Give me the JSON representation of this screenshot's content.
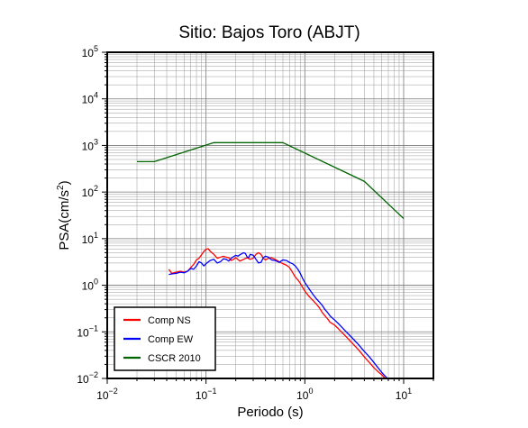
{
  "chart_data": {
    "type": "line",
    "title": "Sitio: Bajos Toro (ABJT)",
    "xlabel": "Periodo (s)",
    "ylabel": {
      "prefix": "PSA(cm/s",
      "exp": "2",
      "suffix": ")"
    },
    "xscale": "log",
    "yscale": "log",
    "xlim": [
      0.01,
      20
    ],
    "ylim": [
      0.01,
      100000
    ],
    "x_ticks": [
      {
        "base": "10",
        "exp": "−2",
        "value": 0.01
      },
      {
        "base": "10",
        "exp": "−1",
        "value": 0.1
      },
      {
        "base": "10",
        "exp": "0",
        "value": 1
      },
      {
        "base": "10",
        "exp": "1",
        "value": 10
      }
    ],
    "y_ticks": [
      {
        "base": "10",
        "exp": "−2",
        "value": 0.01
      },
      {
        "base": "10",
        "exp": "−1",
        "value": 0.1
      },
      {
        "base": "10",
        "exp": "0",
        "value": 1
      },
      {
        "base": "10",
        "exp": "1",
        "value": 10
      },
      {
        "base": "10",
        "exp": "2",
        "value": 100
      },
      {
        "base": "10",
        "exp": "3",
        "value": 1000
      },
      {
        "base": "10",
        "exp": "4",
        "value": 10000
      },
      {
        "base": "10",
        "exp": "5",
        "value": 100000
      }
    ],
    "grid": true,
    "legend_position": "bottom-left",
    "series": [
      {
        "name": "Comp NS",
        "color": "#ff0000",
        "points": [
          [
            0.042,
            2.2
          ],
          [
            0.045,
            1.8
          ],
          [
            0.05,
            1.9
          ],
          [
            0.055,
            2.0
          ],
          [
            0.06,
            1.9
          ],
          [
            0.065,
            2.0
          ],
          [
            0.07,
            2.4
          ],
          [
            0.075,
            2.8
          ],
          [
            0.08,
            3.5
          ],
          [
            0.085,
            3.8
          ],
          [
            0.09,
            4.5
          ],
          [
            0.095,
            5.3
          ],
          [
            0.1,
            5.9
          ],
          [
            0.105,
            6.1
          ],
          [
            0.11,
            5.4
          ],
          [
            0.12,
            4.6
          ],
          [
            0.13,
            3.8
          ],
          [
            0.14,
            4.0
          ],
          [
            0.15,
            4.2
          ],
          [
            0.16,
            4.0
          ],
          [
            0.17,
            3.9
          ],
          [
            0.18,
            3.4
          ],
          [
            0.19,
            3.6
          ],
          [
            0.2,
            3.9
          ],
          [
            0.22,
            3.3
          ],
          [
            0.24,
            3.6
          ],
          [
            0.26,
            3.9
          ],
          [
            0.28,
            3.6
          ],
          [
            0.3,
            3.8
          ],
          [
            0.32,
            4.6
          ],
          [
            0.34,
            5.0
          ],
          [
            0.36,
            4.6
          ],
          [
            0.38,
            3.8
          ],
          [
            0.4,
            3.5
          ],
          [
            0.43,
            3.8
          ],
          [
            0.46,
            3.9
          ],
          [
            0.5,
            3.6
          ],
          [
            0.55,
            3.2
          ],
          [
            0.6,
            2.9
          ],
          [
            0.65,
            2.7
          ],
          [
            0.7,
            2.4
          ],
          [
            0.75,
            1.9
          ],
          [
            0.8,
            1.5
          ],
          [
            0.85,
            1.3
          ],
          [
            0.9,
            1.1
          ],
          [
            0.95,
            0.9
          ],
          [
            1.0,
            0.75
          ],
          [
            1.1,
            0.58
          ],
          [
            1.2,
            0.48
          ],
          [
            1.3,
            0.4
          ],
          [
            1.4,
            0.33
          ],
          [
            1.5,
            0.26
          ],
          [
            1.6,
            0.22
          ],
          [
            1.7,
            0.19
          ],
          [
            1.8,
            0.16
          ],
          [
            2.0,
            0.14
          ],
          [
            2.2,
            0.115
          ],
          [
            2.4,
            0.095
          ],
          [
            2.6,
            0.08
          ],
          [
            3.0,
            0.058
          ],
          [
            3.5,
            0.041
          ],
          [
            4.0,
            0.029
          ],
          [
            4.5,
            0.022
          ],
          [
            5.0,
            0.017
          ],
          [
            5.5,
            0.014
          ],
          [
            6.0,
            0.012
          ],
          [
            6.5,
            0.01
          ]
        ]
      },
      {
        "name": "Comp EW",
        "color": "#0000ff",
        "points": [
          [
            0.042,
            1.7
          ],
          [
            0.045,
            1.75
          ],
          [
            0.05,
            1.8
          ],
          [
            0.055,
            1.9
          ],
          [
            0.06,
            1.85
          ],
          [
            0.065,
            2.0
          ],
          [
            0.07,
            2.3
          ],
          [
            0.075,
            2.2
          ],
          [
            0.08,
            2.6
          ],
          [
            0.085,
            3.2
          ],
          [
            0.09,
            3.0
          ],
          [
            0.095,
            2.6
          ],
          [
            0.1,
            2.9
          ],
          [
            0.11,
            3.4
          ],
          [
            0.12,
            3.6
          ],
          [
            0.13,
            3.0
          ],
          [
            0.14,
            3.2
          ],
          [
            0.15,
            3.7
          ],
          [
            0.16,
            3.6
          ],
          [
            0.17,
            3.3
          ],
          [
            0.18,
            3.8
          ],
          [
            0.19,
            4.1
          ],
          [
            0.2,
            4.4
          ],
          [
            0.21,
            4.2
          ],
          [
            0.22,
            4.5
          ],
          [
            0.24,
            5.0
          ],
          [
            0.25,
            4.8
          ],
          [
            0.26,
            4.1
          ],
          [
            0.27,
            3.9
          ],
          [
            0.28,
            4.6
          ],
          [
            0.3,
            4.4
          ],
          [
            0.32,
            3.6
          ],
          [
            0.34,
            3.0
          ],
          [
            0.36,
            3.1
          ],
          [
            0.38,
            3.9
          ],
          [
            0.4,
            4.2
          ],
          [
            0.43,
            4.0
          ],
          [
            0.46,
            3.5
          ],
          [
            0.5,
            3.4
          ],
          [
            0.55,
            3.1
          ],
          [
            0.6,
            3.5
          ],
          [
            0.65,
            3.4
          ],
          [
            0.7,
            3.1
          ],
          [
            0.75,
            2.9
          ],
          [
            0.8,
            2.6
          ],
          [
            0.85,
            2.2
          ],
          [
            0.9,
            1.8
          ],
          [
            0.95,
            1.4
          ],
          [
            1.0,
            1.15
          ],
          [
            1.1,
            0.85
          ],
          [
            1.2,
            0.65
          ],
          [
            1.3,
            0.52
          ],
          [
            1.4,
            0.44
          ],
          [
            1.5,
            0.37
          ],
          [
            1.6,
            0.3
          ],
          [
            1.7,
            0.26
          ],
          [
            1.8,
            0.22
          ],
          [
            2.0,
            0.18
          ],
          [
            2.2,
            0.148
          ],
          [
            2.4,
            0.122
          ],
          [
            2.6,
            0.102
          ],
          [
            3.0,
            0.075
          ],
          [
            3.5,
            0.053
          ],
          [
            4.0,
            0.038
          ],
          [
            4.5,
            0.029
          ],
          [
            5.0,
            0.022
          ],
          [
            5.5,
            0.017
          ],
          [
            6.0,
            0.0135
          ],
          [
            6.5,
            0.0112
          ],
          [
            7.0,
            0.0095
          ]
        ]
      },
      {
        "name": "CSCR 2010",
        "color": "#006400",
        "points": [
          [
            0.02,
            450
          ],
          [
            0.03,
            450
          ],
          [
            0.12,
            1150
          ],
          [
            0.6,
            1150
          ],
          [
            4.0,
            170
          ],
          [
            10.0,
            27
          ]
        ]
      }
    ]
  }
}
